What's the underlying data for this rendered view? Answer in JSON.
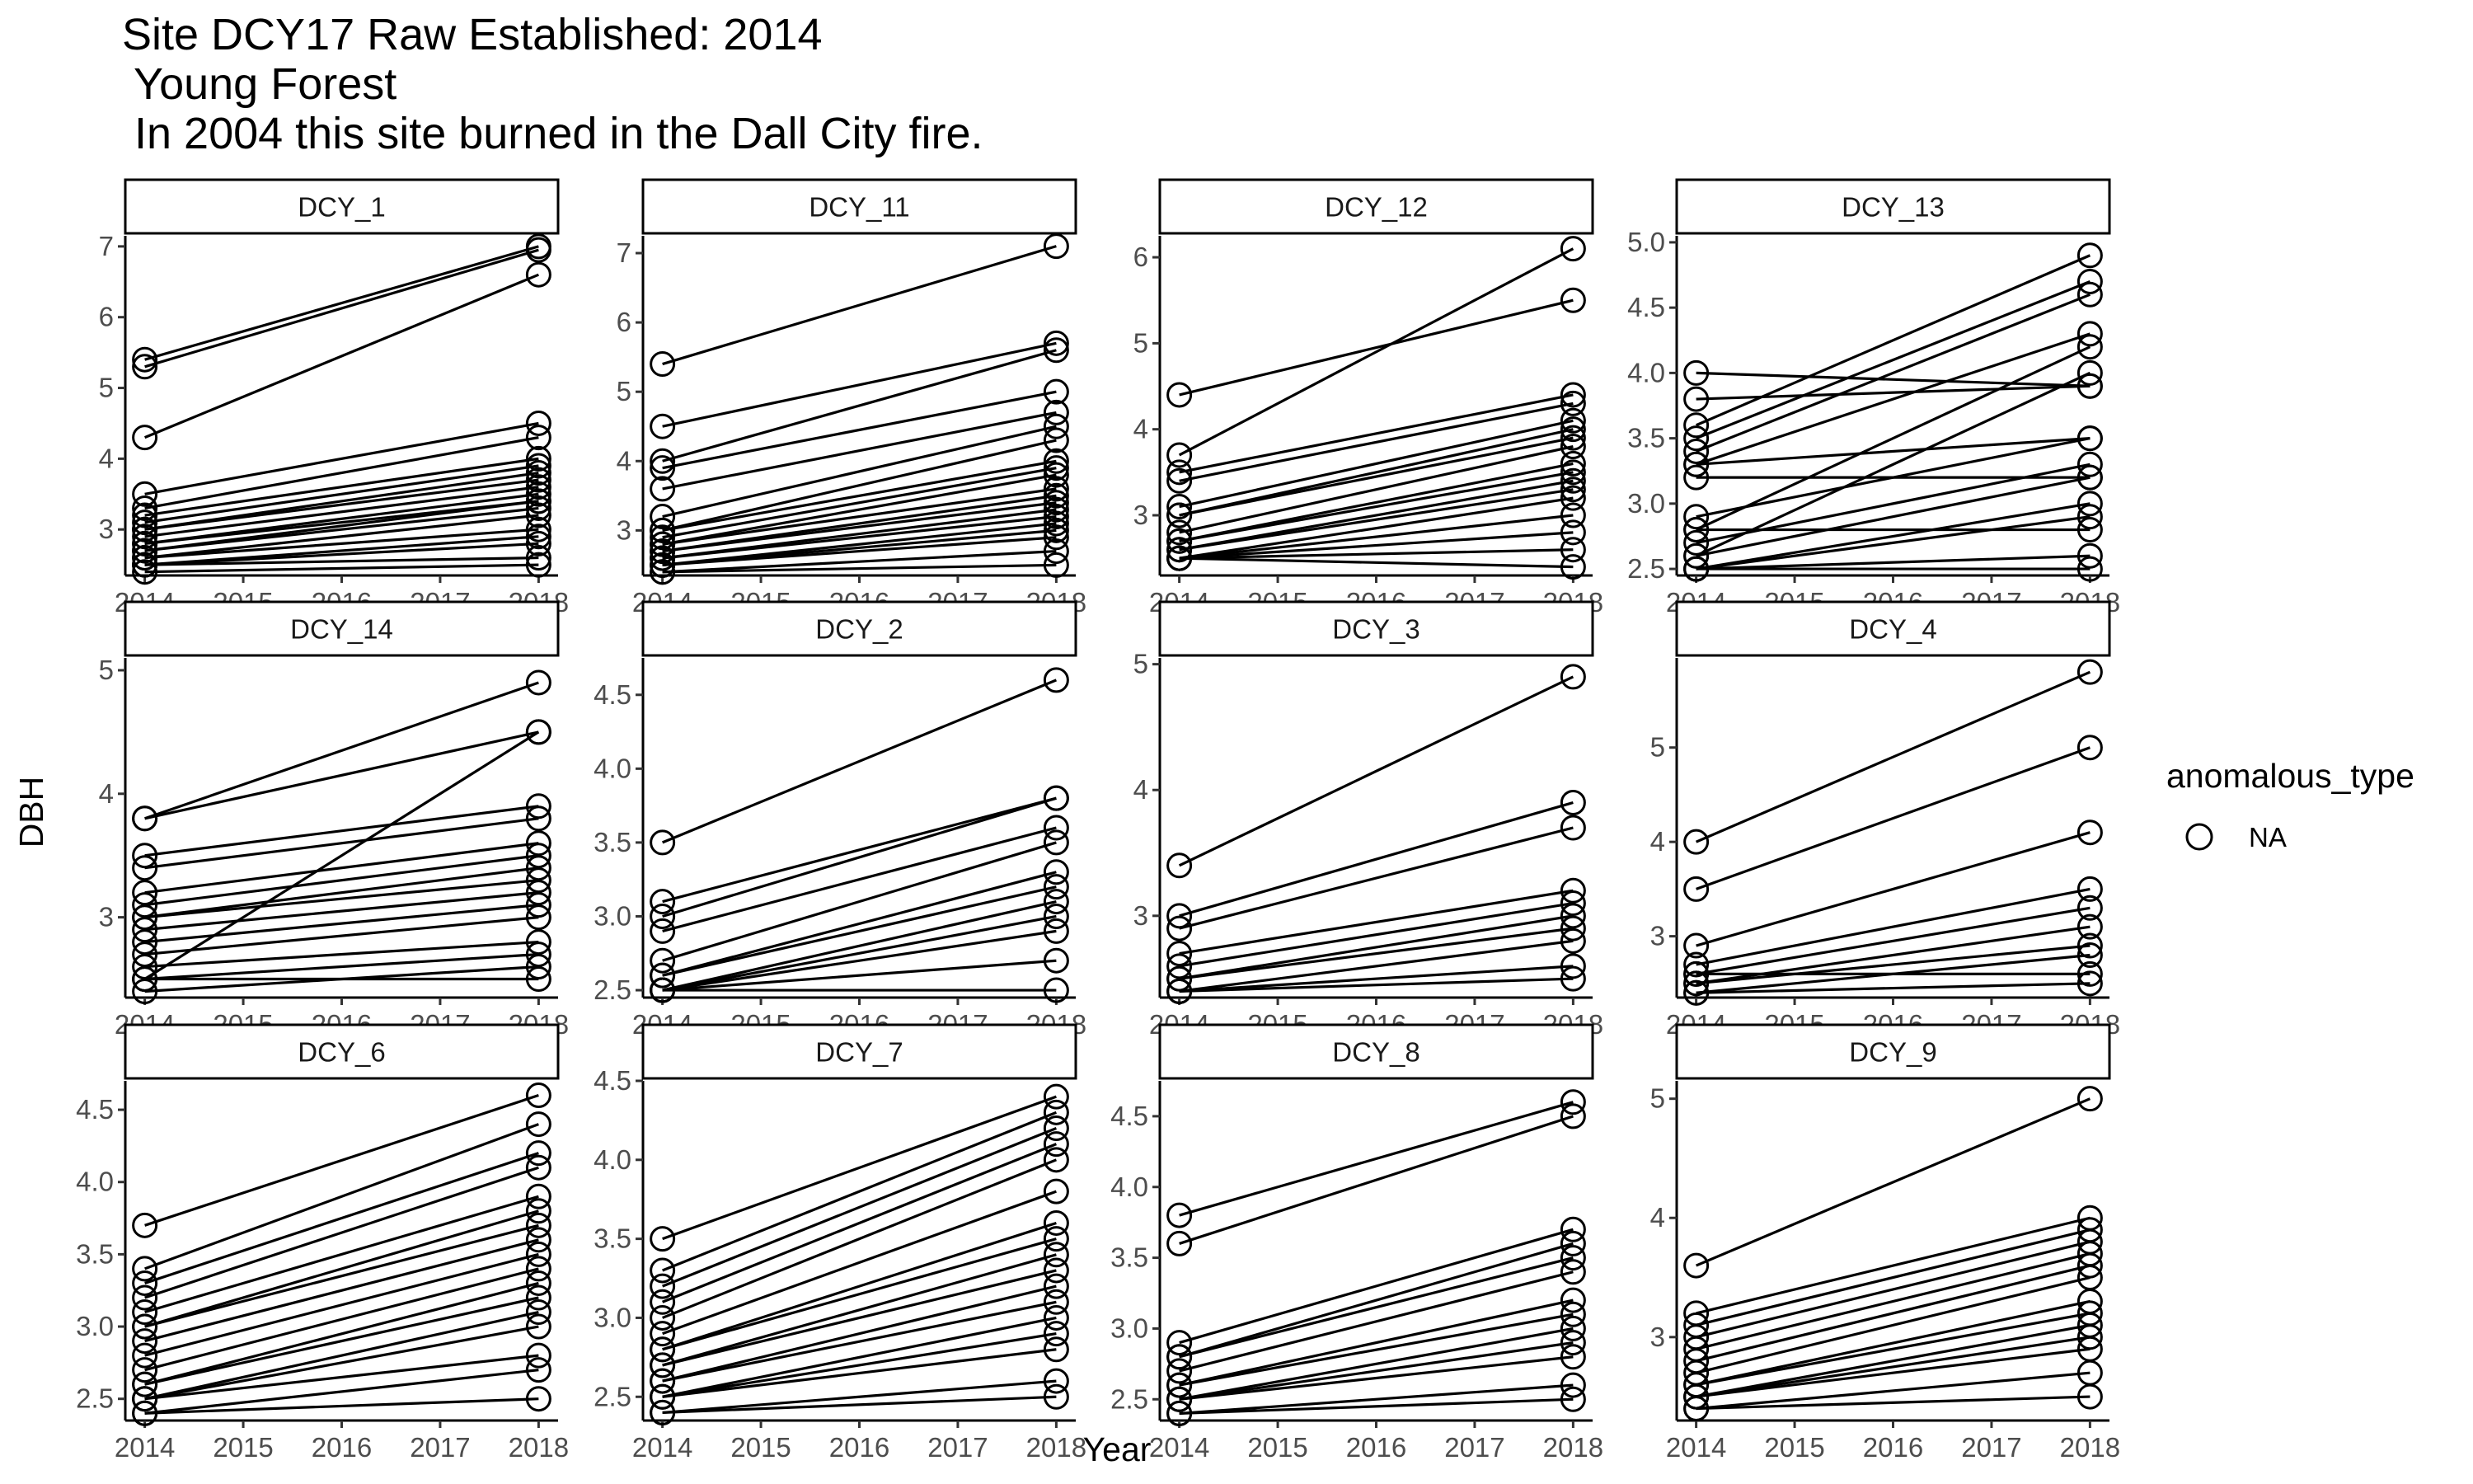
{
  "title": {
    "line1": "Site DCY17 Raw Established: 2014",
    "line2": " Young Forest",
    "line3": " In 2004 this site burned in the Dall City fire."
  },
  "colors": {
    "line": "#000000",
    "point_stroke": "#000000",
    "strip_border": "#000000",
    "background": "#ffffff"
  },
  "chart_data": {
    "type": "line",
    "facet_layout": {
      "rows": 3,
      "cols": 4,
      "scales": "free_y"
    },
    "xlabel": "Year",
    "ylabel": "DBH",
    "x_ticks": [
      2014,
      2015,
      2016,
      2017,
      2018
    ],
    "xlim": [
      2014,
      2018
    ],
    "grid": false,
    "legend": {
      "title": "anomalous_type",
      "entries": [
        "NA"
      ],
      "marker": "open-circle",
      "placement": "right"
    },
    "panels": [
      {
        "name": "DCY_1",
        "ylim": [
          2.35,
          7.15
        ],
        "yticks": [
          3,
          4,
          5,
          6,
          7
        ],
        "pairs": [
          [
            5.4,
            7.0
          ],
          [
            5.3,
            6.95
          ],
          [
            4.3,
            6.6
          ],
          [
            3.5,
            4.5
          ],
          [
            3.3,
            4.3
          ],
          [
            3.2,
            4.0
          ],
          [
            3.1,
            3.9
          ],
          [
            3.0,
            3.8
          ],
          [
            3.0,
            3.7
          ],
          [
            2.9,
            3.6
          ],
          [
            2.8,
            3.5
          ],
          [
            2.8,
            3.4
          ],
          [
            2.7,
            3.4
          ],
          [
            2.7,
            3.3
          ],
          [
            2.6,
            3.2
          ],
          [
            2.6,
            3.0
          ],
          [
            2.5,
            2.9
          ],
          [
            2.5,
            2.8
          ],
          [
            2.5,
            2.6
          ],
          [
            2.4,
            2.5
          ]
        ]
      },
      {
        "name": "DCY_11",
        "ylim": [
          2.35,
          7.25
        ],
        "yticks": [
          3,
          4,
          5,
          6,
          7
        ],
        "pairs": [
          [
            5.4,
            7.1
          ],
          [
            4.5,
            5.7
          ],
          [
            4.0,
            5.6
          ],
          [
            3.9,
            5.0
          ],
          [
            3.6,
            4.7
          ],
          [
            3.2,
            4.5
          ],
          [
            3.0,
            4.3
          ],
          [
            3.0,
            4.0
          ],
          [
            2.9,
            3.9
          ],
          [
            2.8,
            3.8
          ],
          [
            2.8,
            3.6
          ],
          [
            2.7,
            3.5
          ],
          [
            2.7,
            3.4
          ],
          [
            2.6,
            3.3
          ],
          [
            2.6,
            3.2
          ],
          [
            2.5,
            3.1
          ],
          [
            2.5,
            3.0
          ],
          [
            2.5,
            2.9
          ],
          [
            2.4,
            2.7
          ],
          [
            2.4,
            2.5
          ]
        ]
      },
      {
        "name": "DCY_12",
        "ylim": [
          2.3,
          6.25
        ],
        "yticks": [
          3,
          4,
          5,
          6
        ],
        "pairs": [
          [
            3.7,
            6.1
          ],
          [
            4.4,
            5.5
          ],
          [
            3.5,
            4.4
          ],
          [
            3.4,
            4.3
          ],
          [
            3.1,
            4.1
          ],
          [
            3.0,
            4.0
          ],
          [
            3.0,
            3.9
          ],
          [
            2.8,
            3.8
          ],
          [
            2.7,
            3.6
          ],
          [
            2.7,
            3.5
          ],
          [
            2.6,
            3.4
          ],
          [
            2.6,
            3.3
          ],
          [
            2.5,
            3.2
          ],
          [
            2.5,
            3.0
          ],
          [
            2.5,
            2.8
          ],
          [
            2.5,
            2.6
          ],
          [
            2.5,
            2.4
          ]
        ]
      },
      {
        "name": "DCY_13",
        "ylim": [
          2.45,
          5.05
        ],
        "yticks": [
          2.5,
          3.0,
          3.5,
          4.0,
          4.5,
          5.0
        ],
        "pairs": [
          [
            3.6,
            4.9
          ],
          [
            3.5,
            4.7
          ],
          [
            3.4,
            4.6
          ],
          [
            3.3,
            4.3
          ],
          [
            2.8,
            4.2
          ],
          [
            4.0,
            3.9
          ],
          [
            3.8,
            3.9
          ],
          [
            2.6,
            4.0
          ],
          [
            3.3,
            3.5
          ],
          [
            2.9,
            3.5
          ],
          [
            2.7,
            3.3
          ],
          [
            2.6,
            3.2
          ],
          [
            3.2,
            3.2
          ],
          [
            2.5,
            3.0
          ],
          [
            2.5,
            2.9
          ],
          [
            2.8,
            2.8
          ],
          [
            2.5,
            2.6
          ],
          [
            2.5,
            2.5
          ]
        ]
      },
      {
        "name": "DCY_14",
        "ylim": [
          2.35,
          5.1
        ],
        "yticks": [
          3,
          4,
          5
        ],
        "pairs": [
          [
            3.8,
            4.9
          ],
          [
            3.8,
            4.5
          ],
          [
            2.5,
            4.5
          ],
          [
            3.5,
            3.9
          ],
          [
            3.4,
            3.8
          ],
          [
            3.2,
            3.6
          ],
          [
            3.1,
            3.5
          ],
          [
            3.0,
            3.4
          ],
          [
            3.0,
            3.3
          ],
          [
            2.9,
            3.2
          ],
          [
            2.8,
            3.1
          ],
          [
            2.7,
            3.0
          ],
          [
            2.6,
            2.8
          ],
          [
            2.5,
            2.7
          ],
          [
            2.5,
            2.5
          ],
          [
            2.4,
            2.6
          ]
        ]
      },
      {
        "name": "DCY_2",
        "ylim": [
          2.45,
          4.75
        ],
        "yticks": [
          2.5,
          3.0,
          3.5,
          4.0,
          4.5
        ],
        "pairs": [
          [
            3.5,
            4.6
          ],
          [
            3.1,
            3.8
          ],
          [
            3.0,
            3.8
          ],
          [
            2.9,
            3.6
          ],
          [
            2.7,
            3.5
          ],
          [
            2.6,
            3.3
          ],
          [
            2.6,
            3.2
          ],
          [
            2.5,
            3.1
          ],
          [
            2.5,
            3.0
          ],
          [
            2.5,
            2.9
          ],
          [
            2.5,
            2.7
          ],
          [
            2.5,
            2.5
          ]
        ]
      },
      {
        "name": "DCY_3",
        "ylim": [
          2.35,
          5.05
        ],
        "yticks": [
          3,
          4,
          5
        ],
        "pairs": [
          [
            3.4,
            4.9
          ],
          [
            3.0,
            3.9
          ],
          [
            2.9,
            3.7
          ],
          [
            2.7,
            3.2
          ],
          [
            2.6,
            3.1
          ],
          [
            2.5,
            3.0
          ],
          [
            2.5,
            2.9
          ],
          [
            2.4,
            2.8
          ],
          [
            2.4,
            2.6
          ],
          [
            2.4,
            2.5
          ]
        ]
      },
      {
        "name": "DCY_4",
        "ylim": [
          2.35,
          5.95
        ],
        "yticks": [
          3,
          4,
          5
        ],
        "pairs": [
          [
            4.0,
            5.8
          ],
          [
            3.5,
            5.0
          ],
          [
            2.9,
            4.1
          ],
          [
            2.7,
            3.5
          ],
          [
            2.6,
            3.3
          ],
          [
            2.6,
            2.6
          ],
          [
            2.5,
            3.1
          ],
          [
            2.5,
            2.9
          ],
          [
            2.4,
            2.8
          ],
          [
            2.4,
            2.5
          ]
        ]
      },
      {
        "name": "DCY_6",
        "ylim": [
          2.35,
          4.7
        ],
        "yticks": [
          2.5,
          3.0,
          3.5,
          4.0,
          4.5
        ],
        "pairs": [
          [
            3.7,
            4.6
          ],
          [
            3.4,
            4.4
          ],
          [
            3.3,
            4.2
          ],
          [
            3.2,
            4.1
          ],
          [
            3.1,
            3.9
          ],
          [
            3.0,
            3.8
          ],
          [
            3.0,
            3.7
          ],
          [
            2.9,
            3.6
          ],
          [
            2.8,
            3.5
          ],
          [
            2.7,
            3.4
          ],
          [
            2.6,
            3.3
          ],
          [
            2.6,
            3.2
          ],
          [
            2.5,
            3.1
          ],
          [
            2.5,
            3.0
          ],
          [
            2.5,
            2.8
          ],
          [
            2.4,
            2.7
          ],
          [
            2.4,
            2.5
          ]
        ]
      },
      {
        "name": "DCY_7",
        "ylim": [
          2.35,
          4.5
        ],
        "yticks": [
          2.5,
          3.0,
          3.5,
          4.0,
          4.5
        ],
        "pairs": [
          [
            3.5,
            4.4
          ],
          [
            3.3,
            4.3
          ],
          [
            3.2,
            4.2
          ],
          [
            3.1,
            4.1
          ],
          [
            3.0,
            4.0
          ],
          [
            2.9,
            3.8
          ],
          [
            2.8,
            3.6
          ],
          [
            2.8,
            3.5
          ],
          [
            2.7,
            3.4
          ],
          [
            2.7,
            3.3
          ],
          [
            2.6,
            3.2
          ],
          [
            2.6,
            3.1
          ],
          [
            2.5,
            3.0
          ],
          [
            2.5,
            2.9
          ],
          [
            2.5,
            2.8
          ],
          [
            2.4,
            2.6
          ],
          [
            2.4,
            2.5
          ]
        ]
      },
      {
        "name": "DCY_8",
        "ylim": [
          2.35,
          4.75
        ],
        "yticks": [
          2.5,
          3.0,
          3.5,
          4.0,
          4.5
        ],
        "pairs": [
          [
            3.8,
            4.6
          ],
          [
            3.6,
            4.5
          ],
          [
            2.9,
            3.7
          ],
          [
            2.8,
            3.6
          ],
          [
            2.8,
            3.5
          ],
          [
            2.7,
            3.4
          ],
          [
            2.6,
            3.2
          ],
          [
            2.6,
            3.1
          ],
          [
            2.5,
            3.0
          ],
          [
            2.5,
            2.9
          ],
          [
            2.5,
            2.8
          ],
          [
            2.4,
            2.6
          ],
          [
            2.4,
            2.5
          ]
        ]
      },
      {
        "name": "DCY_9",
        "ylim": [
          2.3,
          5.15
        ],
        "yticks": [
          3,
          4,
          5
        ],
        "pairs": [
          [
            3.6,
            5.0
          ],
          [
            3.2,
            4.0
          ],
          [
            3.1,
            3.9
          ],
          [
            3.0,
            3.8
          ],
          [
            2.9,
            3.7
          ],
          [
            2.8,
            3.6
          ],
          [
            2.7,
            3.5
          ],
          [
            2.6,
            3.3
          ],
          [
            2.6,
            3.2
          ],
          [
            2.5,
            3.1
          ],
          [
            2.5,
            3.0
          ],
          [
            2.5,
            2.9
          ],
          [
            2.4,
            2.7
          ],
          [
            2.4,
            2.5
          ]
        ]
      }
    ]
  }
}
